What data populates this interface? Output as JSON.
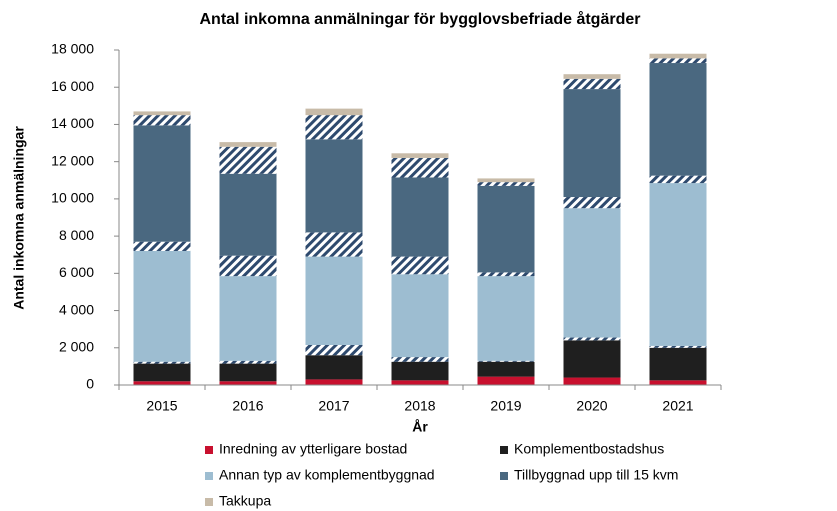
{
  "chart_data": {
    "type": "stacked_bar",
    "title": "Antal inkomna anmälningar för bygglovsbefriade åtgärder",
    "x_label": "År",
    "y_label": "Antal inkomna anmälningar",
    "categories": [
      "2015",
      "2016",
      "2017",
      "2018",
      "2019",
      "2020",
      "2021"
    ],
    "series": [
      {
        "name": "Inredning av ytterligare bostad",
        "color": "#c8102e",
        "values": [
          200,
          200,
          300,
          250,
          450,
          400,
          250
        ]
      },
      {
        "name": "Komplementbostadshus",
        "color": "#1f1f1f",
        "values": [
          950,
          950,
          1300,
          1000,
          800,
          2000,
          1750
        ]
      },
      {
        "color": "#2e4a6e",
        "pattern": "hatch",
        "values": [
          100,
          150,
          550,
          250,
          50,
          150,
          100
        ]
      },
      {
        "name": "Annan typ av komplementbyggnad",
        "color": "#9dbdd1",
        "values": [
          5950,
          4550,
          4750,
          4450,
          4550,
          6950,
          8750
        ]
      },
      {
        "color": "#2e4a6e",
        "pattern": "hatch",
        "values": [
          500,
          1100,
          1300,
          950,
          200,
          600,
          400
        ]
      },
      {
        "name": "Tillbyggnad upp till 15 kvm",
        "color": "#4a6880",
        "values": [
          6250,
          4400,
          5000,
          4250,
          4650,
          5800,
          6050
        ]
      },
      {
        "color": "#2e4a6e",
        "pattern": "hatch",
        "values": [
          550,
          1450,
          1300,
          1050,
          200,
          550,
          250
        ]
      },
      {
        "name": "Takkupa",
        "color": "#c8bba8",
        "values": [
          200,
          250,
          350,
          250,
          200,
          250,
          250
        ]
      }
    ],
    "ylim": [
      0,
      18000
    ],
    "yticks": [
      0,
      {
        "value": 2000,
        "label": "2 000"
      },
      {
        "value": 4000,
        "label": "4 000"
      },
      {
        "value": 6000,
        "label": "6 000"
      },
      {
        "value": 8000,
        "label": "8 000"
      },
      {
        "value": 10000,
        "label": "10 000"
      },
      {
        "value": 12000,
        "label": "12 000"
      },
      {
        "value": 14000,
        "label": "14 000"
      },
      {
        "value": 16000,
        "label": "16 000"
      },
      {
        "value": 18000,
        "label": "18 000"
      }
    ],
    "grid": false
  }
}
